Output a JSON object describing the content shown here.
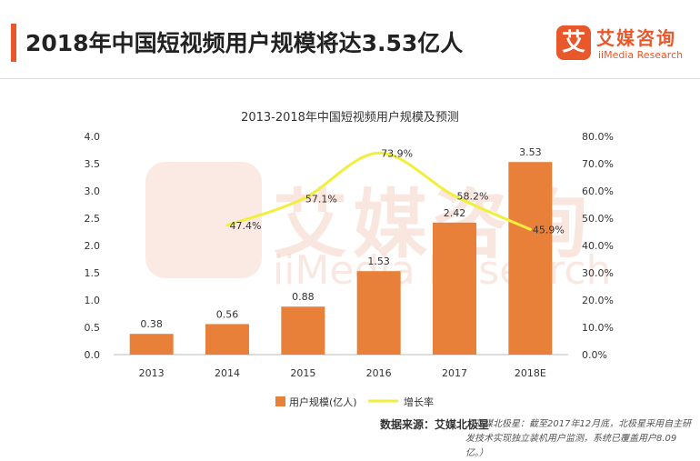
{
  "header": {
    "title": "2018年中国短视频用户规模将达3.53亿人",
    "accent_color": "#e8582b"
  },
  "logo": {
    "mark_char": "艾",
    "name": "艾媒咨询",
    "sub": "iiMedia Research"
  },
  "watermark": {
    "name": "艾媒咨询",
    "sub": "iiMedia Research"
  },
  "chart_data": {
    "type": "bar",
    "title": "2013-2018年中国短视频用户规模及预测",
    "categories": [
      "2013",
      "2014",
      "2015",
      "2016",
      "2017",
      "2018E"
    ],
    "series": [
      {
        "name": "用户规模(亿人)",
        "type": "bar",
        "axis": "left",
        "color": "#e8803a",
        "values": [
          0.38,
          0.56,
          0.88,
          1.53,
          2.42,
          3.53
        ],
        "labels": [
          "0.38",
          "0.56",
          "0.88",
          "1.53",
          "2.42",
          "3.53"
        ]
      },
      {
        "name": "增长率",
        "type": "line",
        "axis": "right",
        "color": "#f2ee3c",
        "values": [
          null,
          47.4,
          57.1,
          73.9,
          58.2,
          45.9
        ],
        "labels": [
          "",
          "47.4%",
          "57.1%",
          "73.9%",
          "58.2%",
          "45.9%"
        ]
      }
    ],
    "y_left": {
      "ylim": [
        0,
        4.0
      ],
      "ticks": [
        "0.0",
        "0.5",
        "1.0",
        "1.5",
        "2.0",
        "2.5",
        "3.0",
        "3.5",
        "4.0"
      ]
    },
    "y_right": {
      "ylim": [
        0,
        80
      ],
      "ticks": [
        "0.0%",
        "10.0%",
        "20.0%",
        "30.0%",
        "40.0%",
        "50.0%",
        "60.0%",
        "70.0%",
        "80.0%"
      ]
    },
    "grid": false,
    "legend_position": "bottom"
  },
  "footer": {
    "source": "数据来源：艾媒北极星",
    "note": "（艾媒北极星：截至2017年12月底，北极星采用自主研发技术实现独立装机用户监测，系统已覆盖用户8.09亿。）"
  }
}
